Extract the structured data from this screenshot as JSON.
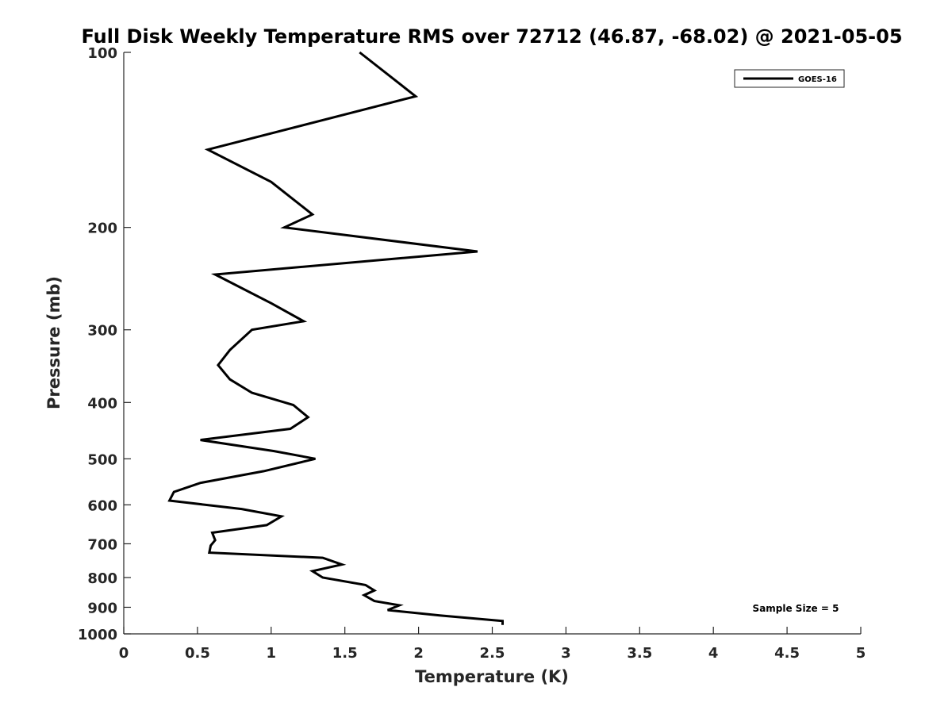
{
  "chart_data": {
    "type": "line",
    "title": "Full Disk Weekly Temperature RMS over 72712 (46.87, -68.02) @ 2021-05-05",
    "xlabel": "Temperature (K)",
    "ylabel": "Pressure (mb)",
    "xlim": [
      0,
      5
    ],
    "ylim": [
      100,
      1000
    ],
    "yscale": "log",
    "y_reversed": true,
    "xticks": [
      0,
      0.5,
      1,
      1.5,
      2,
      2.5,
      3,
      3.5,
      4,
      4.5,
      5
    ],
    "xtick_labels": [
      "0",
      "0.5",
      "1",
      "1.5",
      "2",
      "2.5",
      "3",
      "3.5",
      "4",
      "4.5",
      "5"
    ],
    "yticks": [
      100,
      200,
      300,
      400,
      500,
      600,
      700,
      800,
      900,
      1000
    ],
    "ytick_labels": [
      "100",
      "200",
      "300",
      "400",
      "500",
      "600",
      "700",
      "800",
      "900",
      "1000"
    ],
    "grid": false,
    "legend_position": "top-right",
    "series": [
      {
        "name": "GOES-16",
        "color": "#000000",
        "points": [
          [
            1.6,
            100
          ],
          [
            1.98,
            119
          ],
          [
            0.57,
            147
          ],
          [
            1.0,
            167
          ],
          [
            1.28,
            190
          ],
          [
            1.09,
            200
          ],
          [
            2.4,
            220
          ],
          [
            0.62,
            241
          ],
          [
            1.0,
            270
          ],
          [
            1.22,
            290
          ],
          [
            0.87,
            300
          ],
          [
            0.72,
            325
          ],
          [
            0.64,
            345
          ],
          [
            0.72,
            365
          ],
          [
            0.87,
            385
          ],
          [
            1.15,
            404
          ],
          [
            1.25,
            424
          ],
          [
            1.13,
            444
          ],
          [
            0.52,
            464
          ],
          [
            1.02,
            485
          ],
          [
            1.3,
            500
          ],
          [
            0.95,
            525
          ],
          [
            0.52,
            550
          ],
          [
            0.34,
            570
          ],
          [
            0.31,
            590
          ],
          [
            0.8,
            610
          ],
          [
            1.07,
            628
          ],
          [
            0.97,
            650
          ],
          [
            0.6,
            670
          ],
          [
            0.62,
            690
          ],
          [
            0.59,
            705
          ],
          [
            0.58,
            725
          ],
          [
            1.35,
            740
          ],
          [
            1.48,
            760
          ],
          [
            1.28,
            780
          ],
          [
            1.35,
            800
          ],
          [
            1.64,
            824
          ],
          [
            1.7,
            842
          ],
          [
            1.63,
            858
          ],
          [
            1.7,
            878
          ],
          [
            1.87,
            893
          ],
          [
            1.79,
            910
          ],
          [
            2.15,
            930
          ],
          [
            2.57,
            950
          ],
          [
            2.57,
            965
          ]
        ]
      }
    ],
    "annotation": "Sample Size = 5"
  }
}
